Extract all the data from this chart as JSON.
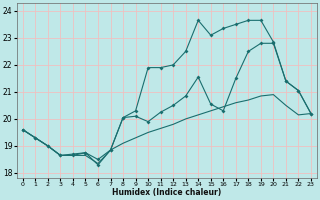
{
  "xlabel": "Humidex (Indice chaleur)",
  "bg_color": "#bfe8e8",
  "grid_color": "#f0c0c0",
  "line_color": "#1a6e6e",
  "xlim": [
    -0.5,
    23.5
  ],
  "ylim": [
    17.8,
    24.3
  ],
  "yticks": [
    18,
    19,
    20,
    21,
    22,
    23,
    24
  ],
  "xticks": [
    0,
    1,
    2,
    3,
    4,
    5,
    6,
    7,
    8,
    9,
    10,
    11,
    12,
    13,
    14,
    15,
    16,
    17,
    18,
    19,
    20,
    21,
    22,
    23
  ],
  "x": [
    0,
    1,
    2,
    3,
    4,
    5,
    6,
    7,
    8,
    9,
    10,
    11,
    12,
    13,
    14,
    15,
    16,
    17,
    18,
    19,
    20,
    21,
    22,
    23
  ],
  "line1_y": [
    19.6,
    19.3,
    19.0,
    18.65,
    18.65,
    18.65,
    18.35,
    18.85,
    19.1,
    19.3,
    19.5,
    19.65,
    19.8,
    20.0,
    20.15,
    20.3,
    20.45,
    20.6,
    20.7,
    20.85,
    20.9,
    20.5,
    20.15,
    20.2
  ],
  "line2_y": [
    19.6,
    19.3,
    19.0,
    18.65,
    18.7,
    18.75,
    18.5,
    18.85,
    20.05,
    20.1,
    19.9,
    20.25,
    20.5,
    20.85,
    21.55,
    20.55,
    20.3,
    21.5,
    22.5,
    22.8,
    22.8,
    21.4,
    21.05,
    20.2
  ],
  "line3_y": [
    19.6,
    19.3,
    19.0,
    18.65,
    18.65,
    18.75,
    18.3,
    18.85,
    20.05,
    20.3,
    21.9,
    21.9,
    22.0,
    22.5,
    23.65,
    23.1,
    23.35,
    23.5,
    23.65,
    23.65,
    22.85,
    21.4,
    21.05,
    20.2
  ]
}
